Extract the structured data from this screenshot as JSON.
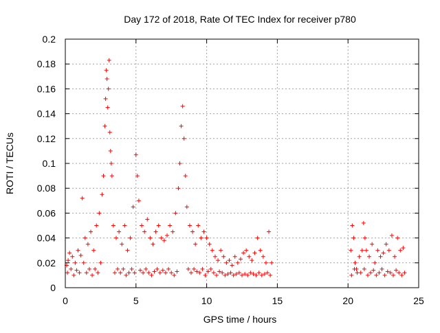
{
  "chart_data": {
    "type": "scatter",
    "title": "Day 172 of 2018, Rate Of TEC Index for receiver p780",
    "xlabel": "GPS time / hours",
    "ylabel": "ROTI / TECUs",
    "xlim": [
      0,
      25
    ],
    "ylim": [
      0,
      0.2
    ],
    "x_ticks": [
      "0",
      "5",
      "10",
      "15",
      "20",
      "25"
    ],
    "y_ticks": [
      "0",
      "0.02",
      "0.04",
      "0.06",
      "0.08",
      "0.1",
      "0.12",
      "0.14",
      "0.16",
      "0.18",
      "0.2"
    ],
    "grid": true,
    "marker": "plus",
    "color": "#ff0000",
    "series": [
      {
        "x": [
          0.1,
          0.2,
          0.3,
          0.5,
          0.7,
          0.9,
          1.1,
          1.2,
          1.4,
          1.6,
          1.8,
          2.0,
          2.2,
          2.4,
          2.6,
          2.7,
          2.8,
          2.85,
          2.9,
          2.95,
          3.0,
          3.05,
          3.1,
          3.15,
          3.2,
          3.25,
          3.3,
          3.4,
          3.6,
          3.8,
          4.0,
          4.2,
          4.4,
          4.6,
          4.8,
          5.0,
          5.1,
          5.2,
          5.4,
          5.6,
          5.8,
          6.0,
          6.2,
          6.4,
          6.6,
          6.8,
          7.0,
          7.2,
          7.4,
          7.6,
          7.8,
          8.0,
          8.1,
          8.2,
          8.3,
          8.4,
          8.5,
          8.6,
          8.8,
          9.0,
          9.2,
          9.4,
          9.6,
          9.8,
          10.0,
          10.2,
          10.4,
          10.6,
          10.8,
          11.0,
          11.2,
          11.4,
          11.6,
          11.8,
          12.0,
          12.2,
          12.4,
          12.6,
          12.8,
          13.0,
          13.2,
          13.4,
          13.6,
          13.8,
          14.0,
          14.2,
          14.4,
          14.6,
          0.15,
          0.4,
          0.6,
          0.8,
          1.0,
          1.3,
          1.5,
          1.7,
          1.9,
          2.1,
          2.3,
          2.5,
          3.5,
          3.7,
          3.9,
          4.1,
          4.3,
          4.5,
          4.7,
          4.9,
          5.3,
          5.5,
          5.7,
          5.9,
          6.1,
          6.3,
          6.5,
          6.7,
          6.9,
          7.1,
          7.3,
          7.5,
          7.7,
          7.9,
          8.7,
          8.9,
          9.1,
          9.3,
          9.5,
          9.7,
          9.9,
          10.1,
          10.3,
          10.5,
          10.7,
          10.9,
          11.1,
          11.3,
          11.5,
          11.7,
          11.9,
          12.1,
          12.3,
          12.5,
          12.7,
          12.9,
          13.1,
          13.3,
          13.5,
          13.7,
          13.9,
          14.1,
          14.3,
          14.5,
          20.2,
          20.3,
          20.4,
          20.5,
          20.6,
          20.8,
          21.0,
          21.1,
          21.2,
          21.3,
          21.5,
          21.7,
          21.9,
          22.1,
          22.3,
          22.5,
          22.7,
          22.9,
          23.1,
          23.3,
          23.5,
          23.7,
          23.9,
          20.25,
          20.45,
          20.65,
          20.9,
          21.15,
          21.4,
          21.6,
          21.8,
          22.0,
          22.2,
          22.4,
          22.6,
          22.8,
          23.0,
          23.2,
          23.4,
          23.6,
          23.8,
          24.0
        ],
        "y": [
          0.018,
          0.022,
          0.028,
          0.025,
          0.02,
          0.03,
          0.026,
          0.072,
          0.04,
          0.035,
          0.045,
          0.03,
          0.05,
          0.06,
          0.075,
          0.09,
          0.13,
          0.152,
          0.175,
          0.168,
          0.145,
          0.16,
          0.183,
          0.125,
          0.11,
          0.1,
          0.09,
          0.05,
          0.04,
          0.045,
          0.035,
          0.05,
          0.03,
          0.04,
          0.065,
          0.107,
          0.09,
          0.07,
          0.05,
          0.045,
          0.055,
          0.04,
          0.035,
          0.045,
          0.05,
          0.04,
          0.038,
          0.042,
          0.05,
          0.045,
          0.06,
          0.08,
          0.1,
          0.13,
          0.146,
          0.12,
          0.09,
          0.065,
          0.05,
          0.045,
          0.035,
          0.05,
          0.04,
          0.045,
          0.04,
          0.035,
          0.03,
          0.025,
          0.022,
          0.03,
          0.025,
          0.02,
          0.022,
          0.018,
          0.025,
          0.02,
          0.023,
          0.028,
          0.03,
          0.025,
          0.022,
          0.028,
          0.04,
          0.03,
          0.025,
          0.02,
          0.045,
          0.02,
          0.012,
          0.015,
          0.01,
          0.014,
          0.012,
          0.02,
          0.012,
          0.015,
          0.01,
          0.015,
          0.012,
          0.02,
          0.012,
          0.015,
          0.012,
          0.015,
          0.01,
          0.012,
          0.015,
          0.012,
          0.014,
          0.012,
          0.015,
          0.012,
          0.01,
          0.013,
          0.015,
          0.012,
          0.014,
          0.012,
          0.015,
          0.012,
          0.01,
          0.013,
          0.015,
          0.012,
          0.015,
          0.013,
          0.012,
          0.015,
          0.01,
          0.013,
          0.015,
          0.012,
          0.01,
          0.013,
          0.012,
          0.01,
          0.011,
          0.012,
          0.01,
          0.011,
          0.012,
          0.01,
          0.011,
          0.01,
          0.012,
          0.011,
          0.01,
          0.012,
          0.01,
          0.011,
          0.012,
          0.01,
          0.03,
          0.05,
          0.04,
          0.02,
          0.015,
          0.025,
          0.03,
          0.052,
          0.04,
          0.03,
          0.025,
          0.035,
          0.02,
          0.03,
          0.025,
          0.028,
          0.035,
          0.03,
          0.042,
          0.025,
          0.04,
          0.03,
          0.032,
          0.01,
          0.015,
          0.012,
          0.012,
          0.015,
          0.01,
          0.012,
          0.014,
          0.01,
          0.012,
          0.015,
          0.01,
          0.013,
          0.012,
          0.01,
          0.014,
          0.012,
          0.01,
          0.012
        ]
      }
    ]
  }
}
